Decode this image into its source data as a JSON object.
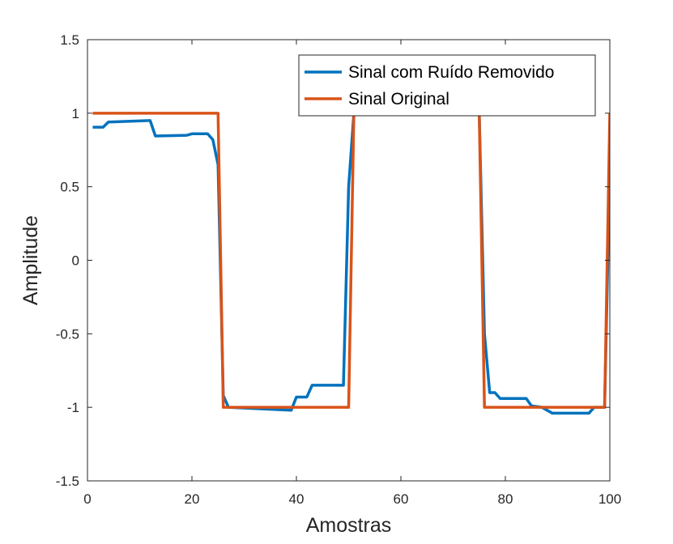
{
  "chart_data": {
    "type": "line",
    "xlabel": "Amostras",
    "ylabel": "Amplitude",
    "xlim": [
      0,
      100
    ],
    "ylim": [
      -1.5,
      1.5
    ],
    "x_ticks": [
      0,
      20,
      40,
      60,
      80,
      100
    ],
    "y_ticks": [
      -1.5,
      -1,
      -0.5,
      0,
      0.5,
      1,
      1.5
    ],
    "x_tick_labels": [
      "0",
      "20",
      "40",
      "60",
      "80",
      "100"
    ],
    "y_tick_labels": [
      "-1.5",
      "-1",
      "-0.5",
      "0",
      "0.5",
      "1",
      "1.5"
    ],
    "grid": false,
    "legend_position": "top-right",
    "series": [
      {
        "name": "Sinal com Ruído Removido",
        "color": "#0072BD",
        "points": [
          [
            1,
            0.905
          ],
          [
            2,
            0.905
          ],
          [
            3,
            0.905
          ],
          [
            4,
            0.94
          ],
          [
            12,
            0.95
          ],
          [
            13,
            0.845
          ],
          [
            19,
            0.85
          ],
          [
            20,
            0.86
          ],
          [
            23,
            0.86
          ],
          [
            24,
            0.82
          ],
          [
            25,
            0.65
          ],
          [
            26,
            -0.92
          ],
          [
            27,
            -1.0
          ],
          [
            39,
            -1.02
          ],
          [
            40,
            -0.93
          ],
          [
            42,
            -0.93
          ],
          [
            43,
            -0.85
          ],
          [
            49,
            -0.85
          ],
          [
            50,
            0.5
          ],
          [
            51,
            1.0
          ],
          [
            75,
            1.0
          ],
          [
            76,
            -0.5
          ],
          [
            77,
            -0.9
          ],
          [
            78,
            -0.9
          ],
          [
            79,
            -0.94
          ],
          [
            84,
            -0.94
          ],
          [
            85,
            -0.99
          ],
          [
            87,
            -1.0
          ],
          [
            89,
            -1.04
          ],
          [
            96,
            -1.04
          ],
          [
            97,
            -1.0
          ],
          [
            99,
            -1.0
          ],
          [
            100,
            0.62
          ]
        ]
      },
      {
        "name": "Sinal Original",
        "color": "#D95319",
        "points": [
          [
            1,
            1
          ],
          [
            25,
            1
          ],
          [
            26,
            -1
          ],
          [
            50,
            -1
          ],
          [
            51,
            1
          ],
          [
            75,
            1
          ],
          [
            76,
            -1
          ],
          [
            99,
            -1
          ],
          [
            100,
            1
          ]
        ]
      }
    ]
  }
}
